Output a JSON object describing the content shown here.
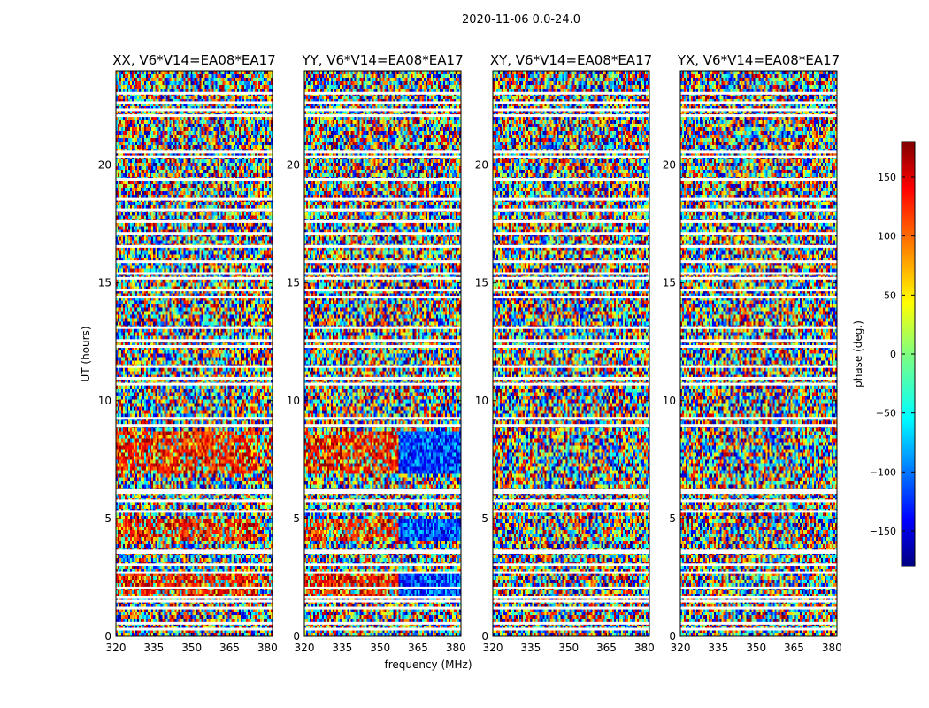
{
  "chart_data": {
    "type": "heatmap",
    "title": "2020-11-06 0.0-24.0",
    "xlabel": "frequency (MHz)",
    "ylabel": "UT (hours)",
    "xlim": [
      320,
      382
    ],
    "ylim": [
      0,
      24
    ],
    "x_ticks": [
      "320",
      "335",
      "350",
      "365",
      "380"
    ],
    "y_ticks": [
      "0",
      "5",
      "10",
      "15",
      "20"
    ],
    "panels": [
      {
        "title": "XX, V6*V14=EA08*EA17",
        "correlation": "XX"
      },
      {
        "title": "YY, V6*V14=EA08*EA17",
        "correlation": "YY"
      },
      {
        "title": "XY, V6*V14=EA08*EA17",
        "correlation": "XY"
      },
      {
        "title": "YX, V6*V14=EA08*EA17",
        "correlation": "YX"
      }
    ],
    "colorbar": {
      "label": "phase (deg.)",
      "range": [
        -180,
        180
      ],
      "ticks": [
        "150",
        "100",
        "50",
        "0",
        "−50",
        "−100",
        "−150"
      ],
      "tick_values": [
        150,
        100,
        50,
        0,
        -50,
        -100,
        -150
      ],
      "colormap": "jet"
    },
    "flagged_ut_hours": [
      0.3,
      0.55,
      1.2,
      1.5,
      1.65,
      2.05,
      2.7,
      3.05,
      3.55,
      3.65,
      5.3,
      5.75,
      6.1,
      6.2,
      8.95,
      9.25,
      10.7,
      10.95,
      11.45,
      12.3,
      12.55,
      13.1,
      14.4,
      14.7,
      15.2,
      15.4,
      15.9,
      16.55,
      17.1,
      17.6,
      18.1,
      18.55,
      19.4,
      20.35,
      20.55,
      22.1,
      22.35,
      22.65,
      23.05
    ]
  }
}
